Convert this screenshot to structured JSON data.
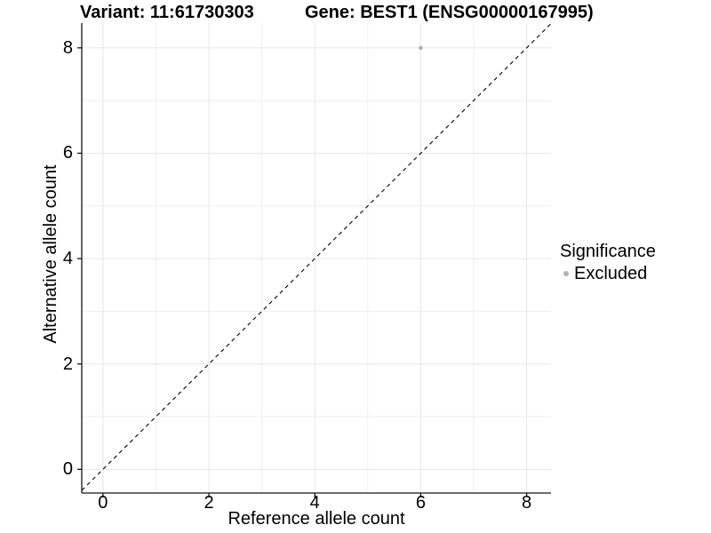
{
  "colors": {
    "background": "#ffffff",
    "grid_major": "#e6e6e6",
    "grid_minor": "#efefef",
    "axis_line": "#141414",
    "tick_mark": "#141414",
    "abline": "#000000",
    "text": "#000000",
    "excluded_point": "#b2b2b2"
  },
  "chart_data": {
    "type": "scatter",
    "title_left": "Variant: 11:61730303",
    "title_right": "Gene: BEST1 (ENSG00000167995)",
    "xlabel": "Reference allele count",
    "ylabel": "Alternative allele count",
    "xlim": [
      -0.4,
      8.46
    ],
    "ylim": [
      -0.45,
      8.47
    ],
    "x_ticks": [
      0,
      2,
      4,
      6,
      8
    ],
    "y_ticks": [
      0,
      2,
      4,
      6,
      8
    ],
    "minor_x": [
      1,
      3,
      5,
      7
    ],
    "minor_y": [
      1,
      3,
      5,
      7
    ],
    "grid": true,
    "abline": {
      "slope": 1,
      "intercept": 0,
      "style": "dashed"
    },
    "points": [
      {
        "x": 6,
        "y": 8,
        "series": "Excluded"
      }
    ],
    "series": [
      {
        "name": "Excluded",
        "color": "#b2b2b2"
      }
    ],
    "legend": {
      "title": "Significance",
      "position": "right",
      "entries": [
        {
          "label": "Excluded",
          "color": "#b2b2b2"
        }
      ]
    }
  }
}
